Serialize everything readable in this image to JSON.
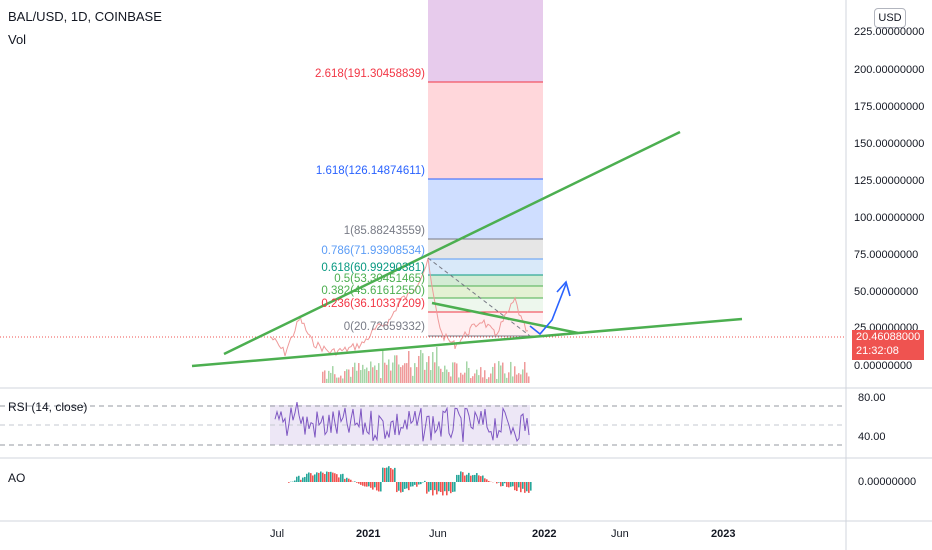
{
  "header": {
    "title": "BAL/USD, 1D, COINBASE",
    "volume_label": "Vol"
  },
  "currency_button": "USD",
  "price_axis": [
    "225.00000000",
    "200.00000000",
    "175.00000000",
    "150.00000000",
    "125.00000000",
    "100.00000000",
    "75.00000000",
    "50.00000000",
    "25.00000000",
    "0.00000000"
  ],
  "current_price": {
    "price": "20.46088000",
    "countdown": "21:32:08",
    "color": "#ef5350"
  },
  "fib_levels": [
    {
      "text": "2.618(191.30458839)",
      "color": "#f23645"
    },
    {
      "text": "1.618(126.14874611)",
      "color": "#2962ff"
    },
    {
      "text": "1(85.88243559)",
      "color": "#787b86"
    },
    {
      "text": "0.786(71.93908534)",
      "color": "#5b9cf6"
    },
    {
      "text": "0.618(60.99290381)",
      "color": "#089981"
    },
    {
      "text": "0.5(53.30451465)",
      "color": "#4caf50"
    },
    {
      "text": "0.382(45.61612550)",
      "color": "#4caf50"
    },
    {
      "text": "0.236(36.10337209)",
      "color": "#f23645"
    },
    {
      "text": "0(20.72659332)",
      "color": "#787b86"
    }
  ],
  "rsi": {
    "label": "RSI (14, close)",
    "axis": [
      "80.00",
      "40.00"
    ]
  },
  "ao": {
    "label": "AO",
    "axis": [
      "0.00000000"
    ]
  },
  "time_axis": [
    "Jul",
    "2021",
    "Jun",
    "2022",
    "Jun",
    "2023"
  ],
  "colors": {
    "trendline": "#4caf50",
    "arrow": "#2962ff",
    "rsi_line": "#7e57c2",
    "rsi_band": "#ede7f6"
  }
}
